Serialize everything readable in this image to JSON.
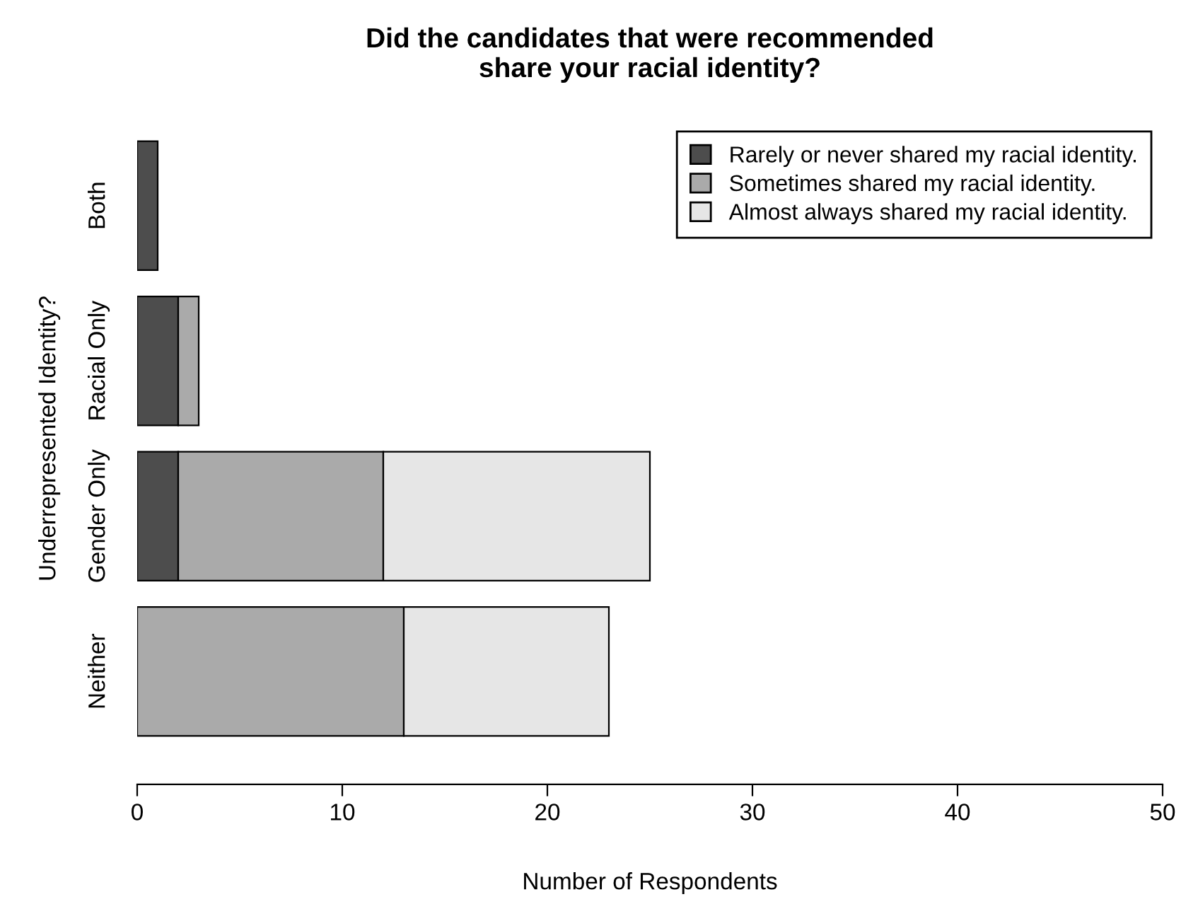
{
  "chart_data": {
    "type": "bar",
    "orientation": "horizontal",
    "stacked": true,
    "title": "Did the candidates that were recommended\nshare your racial identity?",
    "xlabel": "Number of Respondents",
    "ylabel": "Underrepresented Identity?",
    "categories": [
      "Both",
      "Racial Only",
      "Gender Only",
      "Neither"
    ],
    "series": [
      {
        "name": "Rarely or never shared my racial identity.",
        "color": "#4d4d4d",
        "values": [
          1,
          2,
          2,
          null
        ]
      },
      {
        "name": "Sometimes shared my racial identity.",
        "color": "#aaaaaa",
        "values": [
          null,
          1,
          10,
          13
        ]
      },
      {
        "name": "Almost always shared my racial identity.",
        "color": "#e6e6e6",
        "values": [
          null,
          null,
          13,
          10
        ]
      }
    ],
    "xlim": [
      0,
      50
    ],
    "xticks": [
      0,
      10,
      20,
      30,
      40,
      50
    ],
    "grid": false,
    "legend": "top right"
  }
}
